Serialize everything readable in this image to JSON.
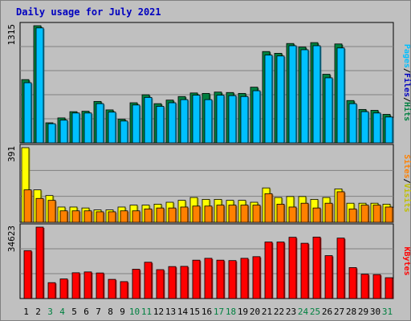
{
  "chart_data": {
    "type": "bar",
    "title": "Daily usage for July 2021",
    "categories": [
      "1",
      "2",
      "3",
      "4",
      "5",
      "6",
      "7",
      "8",
      "9",
      "10",
      "11",
      "12",
      "13",
      "14",
      "15",
      "16",
      "17",
      "18",
      "19",
      "20",
      "21",
      "22",
      "23",
      "24",
      "25",
      "26",
      "27",
      "28",
      "29",
      "30",
      "31"
    ],
    "weekend_days": [
      3,
      4,
      10,
      11,
      17,
      18,
      24,
      25,
      31
    ],
    "panels": [
      {
        "id": "hits-files-pages",
        "max_label": "1315",
        "ymax": 1315,
        "legend": [
          "Pages",
          "/",
          "Files",
          "/",
          "Hits"
        ],
        "series": [
          {
            "name": "Hits",
            "color": "#008040",
            "values": [
              710,
              1315,
              225,
              280,
              350,
              355,
              465,
              370,
              265,
              450,
              540,
              440,
              480,
              520,
              560,
              555,
              570,
              565,
              555,
              625,
              1025,
              1005,
              1115,
              1075,
              1125,
              770,
              1110,
              475,
              375,
              365,
              320
            ]
          },
          {
            "name": "Files",
            "color": "#00c0ff",
            "values": [
              675,
              1290,
              215,
              255,
              335,
              335,
              440,
              345,
              245,
              425,
              510,
              410,
              450,
              485,
              535,
              485,
              535,
              530,
              520,
              585,
              985,
              975,
              1090,
              1045,
              1090,
              730,
              1065,
              440,
              350,
              335,
              290
            ]
          }
        ]
      },
      {
        "id": "visits-sites",
        "max_label": "391",
        "ymax": 391,
        "legend": [
          "Sites",
          "/",
          "Visits"
        ],
        "series": [
          {
            "name": "Visits",
            "color": "#ffff00",
            "values": [
              391,
              170,
              140,
              80,
              80,
              75,
              65,
              65,
              80,
              90,
              90,
              95,
              105,
              115,
              130,
              120,
              120,
              115,
              115,
              105,
              180,
              130,
              135,
              135,
              120,
              130,
              175,
              100,
              100,
              100,
              95
            ]
          },
          {
            "name": "Sites",
            "color": "#ff8000",
            "values": [
              170,
              125,
              115,
              60,
              60,
              60,
              55,
              55,
              60,
              60,
              70,
              75,
              75,
              80,
              85,
              85,
              90,
              90,
              90,
              90,
              150,
              95,
              80,
              100,
              75,
              100,
              160,
              70,
              90,
              90,
              80
            ]
          }
        ]
      },
      {
        "id": "kbytes",
        "max_label": "34623",
        "ymax": 34623,
        "legend": [
          "KBytes"
        ],
        "series": [
          {
            "name": "KBytes",
            "color": "#ff0000",
            "values": [
              23220,
              34623,
              7700,
              9500,
              12500,
              12900,
              12400,
              9300,
              8200,
              14200,
              17600,
              14000,
              15500,
              15600,
              18600,
              19500,
              18600,
              18400,
              19500,
              20300,
              27400,
              27400,
              29700,
              26800,
              29800,
              20800,
              29300,
              15000,
              11800,
              11600,
              10100
            ]
          }
        ]
      }
    ]
  }
}
